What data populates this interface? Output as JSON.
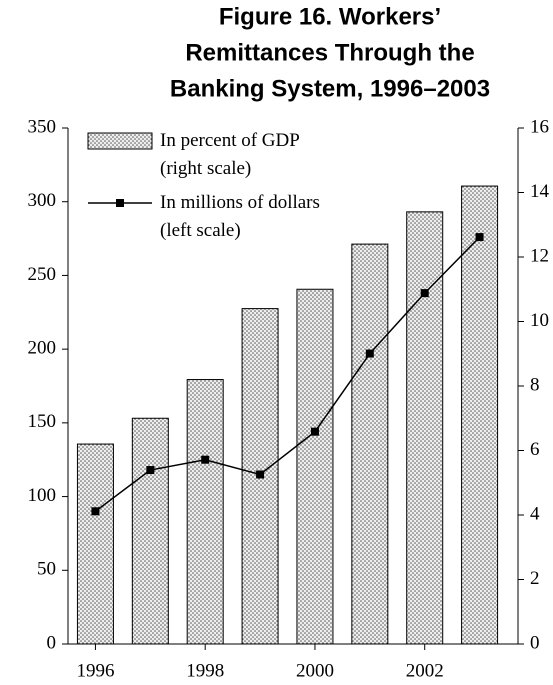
{
  "chart_data": {
    "type": "bar-line",
    "title": [
      "Figure 16. Workers’",
      "Remittances Through the",
      "Banking System, 1996–2003"
    ],
    "x": [
      1996,
      1997,
      1998,
      1999,
      2000,
      2001,
      2002,
      2003
    ],
    "xlim": [
      1995.5,
      2003.7
    ],
    "xticks": [
      1996,
      1998,
      2000,
      2002
    ],
    "ylim": [
      0,
      350
    ],
    "yticks": [
      0,
      50,
      100,
      150,
      200,
      250,
      300,
      350
    ],
    "y2lim": [
      0,
      16
    ],
    "y2ticks": [
      0,
      2,
      4,
      6,
      8,
      10,
      12,
      14,
      16
    ],
    "legend": "upper left",
    "series": [
      {
        "name": "In percent of GDP (right scale)",
        "type": "bar",
        "axis": "y2",
        "color": "#e6e6e6",
        "values": [
          6.2,
          7.0,
          8.2,
          10.4,
          11.0,
          12.4,
          13.4,
          14.2
        ]
      },
      {
        "name": "In millions of dollars (left scale)",
        "type": "line",
        "color": "#000000",
        "values": [
          90,
          118,
          125,
          115,
          144,
          197,
          238,
          276
        ]
      }
    ]
  }
}
